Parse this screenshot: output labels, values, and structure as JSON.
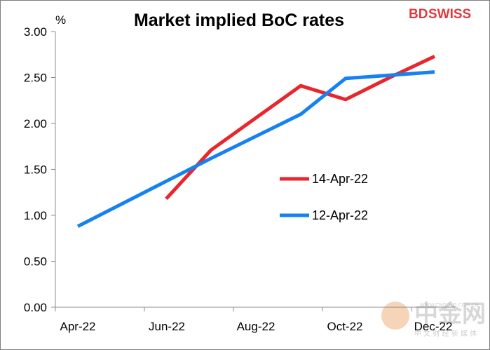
{
  "chart_data": {
    "type": "line",
    "title": "Market implied BoC rates",
    "ylabel": "%",
    "xlabel": "",
    "x": [
      "Apr-22",
      "May-22",
      "Jun-22",
      "Jul-22",
      "Aug-22",
      "Sep-22",
      "Oct-22",
      "Nov-22",
      "Dec-22"
    ],
    "x_tick_labels": [
      "Apr-22",
      "Jun-22",
      "Aug-22",
      "Oct-22",
      "Dec-22"
    ],
    "y_tick_labels": [
      "0.00",
      "0.50",
      "1.00",
      "1.50",
      "2.00",
      "2.50",
      "3.00"
    ],
    "ylim": [
      0,
      3
    ],
    "grid": false,
    "legend_position": "center-right",
    "series": [
      {
        "name": "14-Apr-22",
        "color": "#e8262d",
        "x": [
          "Jun-22",
          "Jul-22",
          "Sep-22",
          "Oct-22",
          "Nov-22",
          "Dec-22"
        ],
        "values": [
          1.18,
          1.71,
          2.41,
          2.26,
          2.5,
          2.73
        ]
      },
      {
        "name": "12-Apr-22",
        "color": "#1681f0",
        "x": [
          "Apr-22",
          "Jul-22",
          "Sep-22",
          "Oct-22",
          "Dec-22"
        ],
        "values": [
          0.88,
          1.62,
          2.1,
          2.49,
          2.56
        ]
      }
    ]
  },
  "branding": {
    "logo_bd": "BD",
    "logo_swiss": "SWISS",
    "watermark_main": "中金网",
    "watermark_sub": "中 文 财 经 新 媒 体",
    "watermark_url": "WWW.CNGOLD.COM.CN"
  }
}
